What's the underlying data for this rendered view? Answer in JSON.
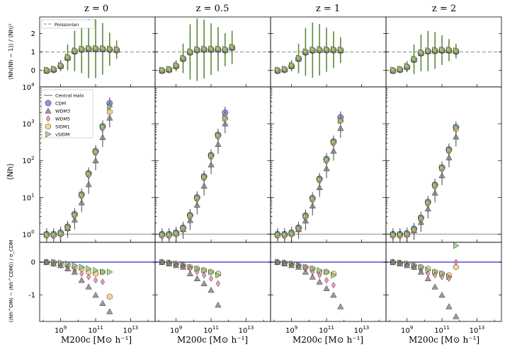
{
  "figure": {
    "column_titles": [
      "z = 0",
      "z = 0.5",
      "z = 1",
      "z = 2"
    ],
    "xlabel": "M200c  [M⊙ h⁻¹]",
    "row_ylabels": [
      "⟨Nh(Nh − 1)⟩ / ⟨Nh⟩²",
      "⟨Nh⟩",
      "(⟨Nh^DM⟩ − ⟨Nh^CDM⟩) / σ_CDM"
    ]
  },
  "chart_data": {
    "type": "scatter",
    "log_x": true,
    "x": [
      8.2,
      8.6,
      9.0,
      9.4,
      9.8,
      10.2,
      10.6,
      11.0,
      11.4,
      11.8,
      12.2,
      12.6,
      13.0,
      13.4
    ],
    "xlim": [
      7.8,
      14.4
    ],
    "xticks": [
      "10^9",
      "10^11",
      "10^13"
    ],
    "series_styles": [
      {
        "name": "Central Halo",
        "color": "#999999",
        "marker": "line"
      },
      {
        "name": "CDM",
        "color": "#6c6ce8",
        "marker": "circle"
      },
      {
        "name": "WDM3",
        "color": "#7a7a7a",
        "marker": "triangle"
      },
      {
        "name": "WDM5",
        "color": "#f07aa0",
        "marker": "diamond"
      },
      {
        "name": "SIDM1",
        "color": "#fbc477",
        "marker": "hexagon"
      },
      {
        "name": "vSIDM",
        "color": "#7fd06a",
        "marker": "triangle-right"
      }
    ],
    "panels": {
      "top": {
        "ylim": [
          -0.9,
          2.9
        ],
        "yticks": [
          0,
          1,
          2
        ],
        "reference_line": {
          "y": 1,
          "label": "Poissonian",
          "color": "#a0a0a0",
          "style": "dashed"
        },
        "legend": "upper-left",
        "values_by_column": [
          [
            0,
            0.05,
            0.25,
            0.7,
            1.05,
            1.15,
            1.18,
            1.18,
            1.17,
            1.15,
            1.12
          ],
          [
            0,
            0.05,
            0.25,
            0.65,
            1.0,
            1.12,
            1.15,
            1.15,
            1.15,
            1.12,
            1.25
          ],
          [
            0,
            0.05,
            0.25,
            0.65,
            1.0,
            1.1,
            1.12,
            1.12,
            1.12,
            1.1
          ],
          [
            0,
            0.05,
            0.2,
            0.6,
            0.95,
            1.05,
            1.08,
            1.1,
            1.1,
            1.05
          ]
        ],
        "errors_by_column": [
          [
            0.05,
            0.15,
            0.3,
            0.7,
            1.1,
            1.3,
            1.6,
            1.6,
            1.4,
            0.9,
            0.5
          ],
          [
            0.05,
            0.15,
            0.3,
            0.8,
            1.5,
            1.7,
            1.6,
            1.4,
            1.2,
            0.9,
            0.9
          ],
          [
            0.05,
            0.15,
            0.3,
            0.8,
            1.3,
            1.5,
            1.4,
            1.2,
            1.0,
            0.7
          ],
          [
            0.05,
            0.15,
            0.3,
            0.8,
            1.0,
            1.1,
            1.0,
            0.8,
            0.6,
            0.4
          ]
        ]
      },
      "middle": {
        "log_y": true,
        "ylim": [
          0.6,
          10000
        ],
        "yticks": [
          "10^0",
          "10^1",
          "10^2",
          "10^3",
          "10^4"
        ],
        "reference_line": {
          "y": 1,
          "label": "Central Halo",
          "color": "#a8a8a8",
          "style": "solid"
        },
        "legend": "upper-left",
        "cdm_by_column": [
          [
            1,
            1,
            1.1,
            1.6,
            3.5,
            12,
            45,
            180,
            850,
            3600
          ],
          [
            1,
            1,
            1.1,
            1.5,
            3.3,
            10,
            37,
            140,
            500,
            2000
          ],
          [
            1,
            1,
            1.1,
            1.5,
            3.2,
            9.5,
            32,
            110,
            330,
            1500
          ],
          [
            1,
            1,
            1.05,
            1.4,
            2.8,
            7.5,
            22,
            65,
            200,
            800
          ]
        ],
        "wdm3_factor_by_column": [
          [
            1,
            1,
            0.95,
            0.9,
            0.7,
            0.6,
            0.5,
            0.55,
            0.5,
            0.4
          ],
          [
            1,
            1,
            0.95,
            0.9,
            0.72,
            0.62,
            0.55,
            0.55,
            0.55,
            0.5
          ],
          [
            1,
            1,
            0.95,
            0.9,
            0.72,
            0.62,
            0.58,
            0.55,
            0.55,
            0.5
          ],
          [
            1,
            1,
            0.95,
            0.9,
            0.75,
            0.65,
            0.6,
            0.6,
            0.6,
            0.55
          ]
        ],
        "wdm5_factor": 0.85,
        "sidm1_factor_by_column": [
          0.58,
          0.7,
          0.8,
          0.9
        ],
        "vsidm_factor_by_column": [
          0.8,
          0.7,
          0.8,
          1.0
        ]
      },
      "bottom": {
        "ylim": [
          -1.8,
          0.6
        ],
        "yticks": [
          -1,
          0
        ],
        "reference_line": {
          "y": 0,
          "color": "#4f4fd8",
          "style": "solid"
        },
        "wdm3_by_column": [
          [
            0,
            -0.05,
            -0.1,
            -0.2,
            -0.3,
            -0.55,
            -0.75,
            -1.0,
            -1.25,
            -1.5
          ],
          [
            0,
            -0.05,
            -0.1,
            -0.15,
            -0.35,
            -0.5,
            -0.65,
            -0.85,
            -1.3
          ],
          [
            0,
            -0.05,
            -0.1,
            -0.15,
            -0.3,
            -0.45,
            -0.6,
            -0.8,
            -1.0,
            -1.35
          ],
          [
            0,
            -0.05,
            -0.1,
            -0.15,
            -0.3,
            -0.5,
            -0.75,
            -1.0,
            -1.35,
            -1.65
          ]
        ],
        "wdm5_by_column": [
          [
            0,
            -0.05,
            -0.1,
            -0.15,
            -0.25,
            -0.35,
            -0.45,
            -0.55,
            -0.6
          ],
          [
            0,
            -0.03,
            -0.08,
            -0.12,
            -0.2,
            -0.3,
            -0.4,
            -0.5,
            -0.65
          ],
          [
            0,
            -0.03,
            -0.08,
            -0.12,
            -0.2,
            -0.3,
            -0.4,
            -0.55,
            -0.7
          ],
          [
            0,
            -0.03,
            -0.08,
            -0.15,
            -0.25,
            -0.35,
            -0.4,
            -0.45,
            -0.5,
            0
          ]
        ],
        "sidm1_by_column": [
          [
            0,
            0,
            -0.05,
            -0.1,
            -0.15,
            -0.2,
            -0.3,
            -0.35,
            -0.3,
            -1.05
          ],
          [
            0,
            -0.02,
            -0.05,
            -0.1,
            -0.15,
            -0.2,
            -0.25,
            -0.3,
            -0.35
          ],
          [
            0,
            -0.02,
            -0.05,
            -0.1,
            -0.15,
            -0.2,
            -0.3,
            -0.3,
            -0.35
          ],
          [
            0,
            -0.02,
            -0.05,
            -0.1,
            -0.15,
            -0.2,
            -0.3,
            -0.35,
            -0.4,
            -0.15
          ]
        ],
        "vsidm_by_column": [
          [
            0,
            0,
            -0.02,
            -0.05,
            -0.1,
            -0.15,
            -0.2,
            -0.25,
            -0.3,
            -0.3
          ],
          [
            0,
            -0.02,
            -0.05,
            -0.1,
            -0.15,
            -0.2,
            -0.25,
            -0.3,
            -0.4
          ],
          [
            0,
            -0.02,
            -0.05,
            -0.1,
            -0.15,
            -0.2,
            -0.25,
            -0.3,
            -0.4
          ],
          [
            0,
            -0.02,
            -0.05,
            -0.1,
            -0.15,
            -0.25,
            -0.3,
            -0.35,
            -0.45,
            0.5
          ]
        ]
      }
    }
  }
}
